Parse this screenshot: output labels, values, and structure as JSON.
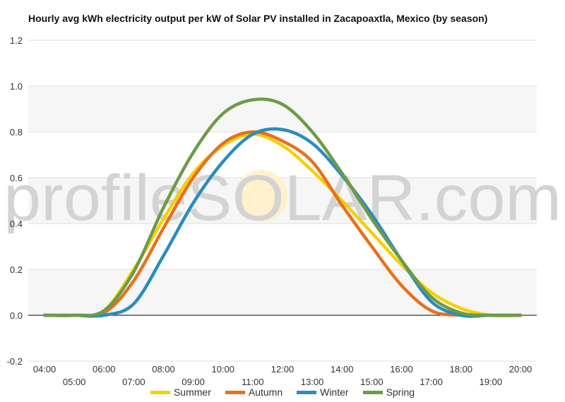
{
  "watermark": "profileSOLAR.com",
  "colors": {
    "Summer": "#f5d000",
    "Autumn": "#e8701e",
    "Winter": "#2a8cbf",
    "Spring": "#6c9b48",
    "grid": "#dddddd",
    "zero": "#000000",
    "band": "#f6f6f6"
  },
  "chart_data": {
    "type": "line",
    "title": "Hourly avg kWh electricity output per kW of Solar PV installed in Zacapoaxtla, Mexico (by season)",
    "x": [
      "04:00",
      "05:00",
      "06:00",
      "07:00",
      "08:00",
      "09:00",
      "10:00",
      "11:00",
      "12:00",
      "13:00",
      "14:00",
      "15:00",
      "16:00",
      "17:00",
      "18:00",
      "19:00",
      "20:00"
    ],
    "ylim": [
      -0.2,
      1.2
    ],
    "yticks": [
      "-0.2",
      "0.0",
      "0.2",
      "0.4",
      "0.6",
      "0.8",
      "1.0",
      "1.2"
    ],
    "grid": true,
    "legend_position": "bottom",
    "series": [
      {
        "name": "Summer",
        "values": [
          0,
          0,
          0.02,
          0.2,
          0.42,
          0.62,
          0.74,
          0.79,
          0.74,
          0.63,
          0.5,
          0.36,
          0.22,
          0.1,
          0.03,
          0,
          0
        ]
      },
      {
        "name": "Autumn",
        "values": [
          0,
          0,
          0.01,
          0.15,
          0.38,
          0.6,
          0.75,
          0.8,
          0.76,
          0.67,
          0.48,
          0.3,
          0.13,
          0.02,
          0,
          0,
          0
        ]
      },
      {
        "name": "Winter",
        "values": [
          0,
          0,
          0,
          0.05,
          0.26,
          0.49,
          0.67,
          0.79,
          0.81,
          0.75,
          0.61,
          0.44,
          0.24,
          0.06,
          0,
          0,
          0
        ]
      },
      {
        "name": "Spring",
        "values": [
          0,
          0,
          0.02,
          0.19,
          0.47,
          0.71,
          0.88,
          0.94,
          0.92,
          0.8,
          0.62,
          0.42,
          0.24,
          0.08,
          0.01,
          0,
          0
        ]
      }
    ]
  }
}
